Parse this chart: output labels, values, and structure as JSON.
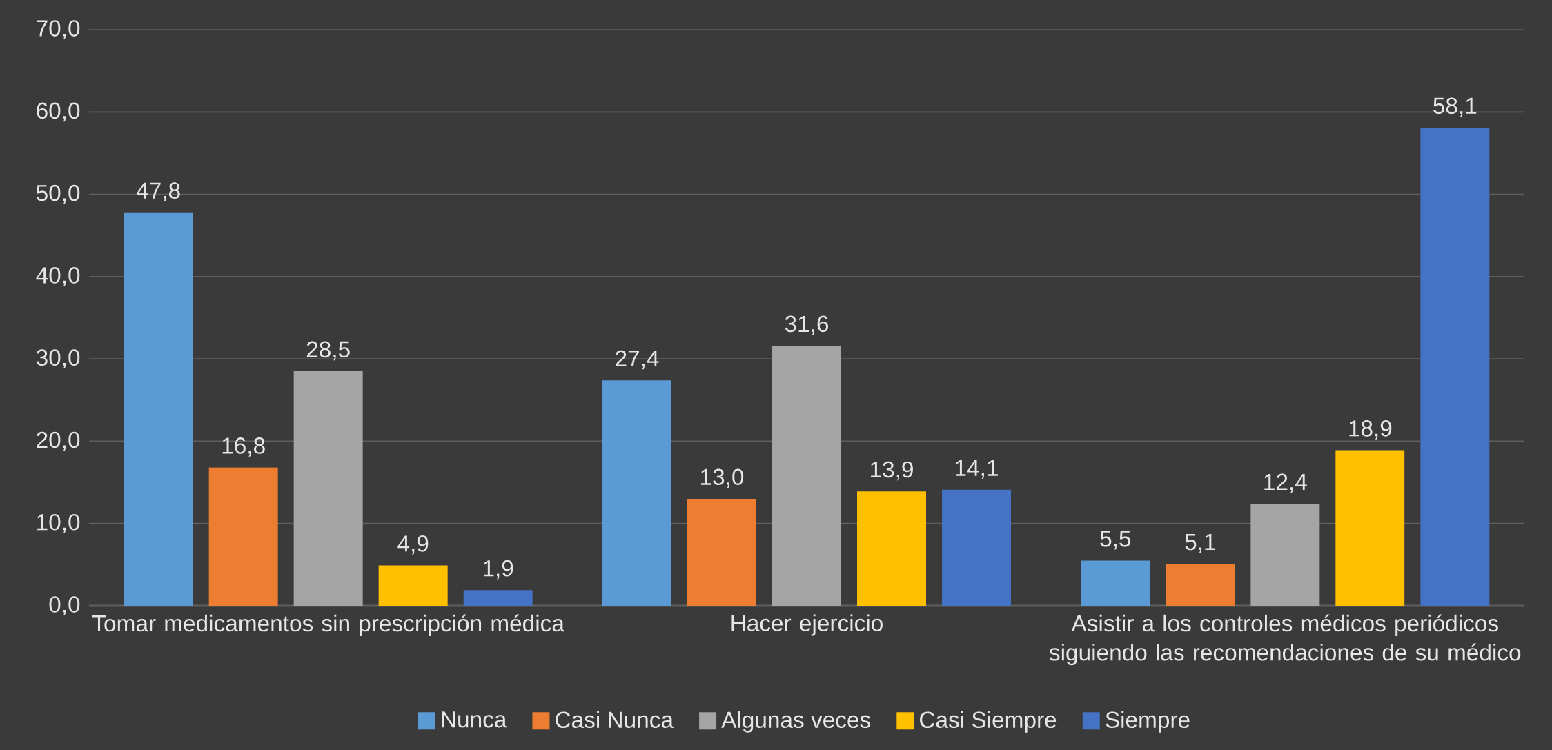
{
  "chart_data": {
    "type": "bar",
    "categories": [
      "Tomar medicamentos sin prescripción médica",
      "Hacer ejercicio",
      "Asistir a los controles médicos periódicos siguiendo las recomendaciones de su médico"
    ],
    "series": [
      {
        "name": "Nunca",
        "color": "#5b9bd5",
        "values": [
          47.8,
          27.4,
          5.5
        ],
        "value_labels": [
          "47,8",
          "27,4",
          "5,5"
        ]
      },
      {
        "name": "Casi Nunca",
        "color": "#ed7d31",
        "values": [
          16.8,
          13.0,
          5.1
        ],
        "value_labels": [
          "16,8",
          "13,0",
          "5,1"
        ]
      },
      {
        "name": "Algunas veces",
        "color": "#a5a5a5",
        "values": [
          28.5,
          31.6,
          12.4
        ],
        "value_labels": [
          "28,5",
          "31,6",
          "12,4"
        ]
      },
      {
        "name": "Casi Siempre",
        "color": "#ffc000",
        "values": [
          4.9,
          13.9,
          18.9
        ],
        "value_labels": [
          "4,9",
          "13,9",
          "18,9"
        ]
      },
      {
        "name": "Siempre",
        "color": "#4472c4",
        "values": [
          1.9,
          14.1,
          58.1
        ],
        "value_labels": [
          "1,9",
          "14,1",
          "58,1"
        ]
      }
    ],
    "ylim": [
      0,
      70
    ],
    "yticks": [
      {
        "value": 0,
        "label": "0,0"
      },
      {
        "value": 10,
        "label": "10,0"
      },
      {
        "value": 20,
        "label": "20,0"
      },
      {
        "value": 30,
        "label": "30,0"
      },
      {
        "value": 40,
        "label": "40,0"
      },
      {
        "value": 50,
        "label": "50,0"
      },
      {
        "value": 60,
        "label": "60,0"
      },
      {
        "value": 70,
        "label": "70,0"
      }
    ],
    "grid": "y",
    "legend": "bottom"
  }
}
